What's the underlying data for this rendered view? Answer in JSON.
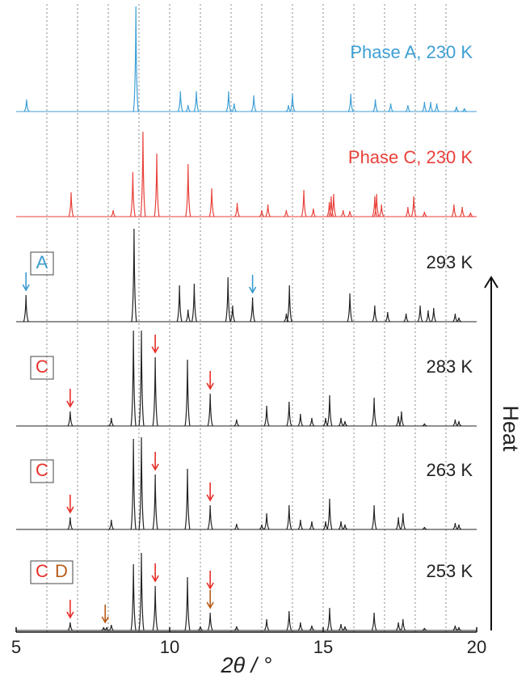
{
  "chart_data": {
    "type": "stacked-pattern",
    "xlabel": "2θ / °",
    "xlim": [
      5,
      20
    ],
    "xticks": [
      5,
      10,
      15,
      20
    ],
    "minor_xticks": [
      6,
      7,
      8,
      9,
      11,
      12,
      13,
      14,
      16,
      17,
      18,
      19
    ],
    "grid": true,
    "annotation": "Heat",
    "series": [
      {
        "name": "Phase A, 230 K",
        "color": "#3d9fd5",
        "x": [
          5.34,
          8.9,
          10.35,
          10.6,
          10.87,
          11.92,
          12.1,
          12.74,
          13.87,
          14.0,
          15.9,
          16.7,
          17.2,
          17.76,
          18.3,
          18.5,
          18.7,
          19.34,
          19.6
        ],
        "values": [
          15,
          130,
          25,
          8,
          25,
          25,
          10,
          20,
          8,
          22,
          22,
          15,
          10,
          8,
          12,
          12,
          10,
          6,
          4
        ]
      },
      {
        "name": "Phase C, 230 K",
        "color": "#e8413a",
        "x": [
          6.79,
          8.16,
          8.8,
          9.13,
          9.58,
          10.6,
          11.37,
          12.2,
          13.0,
          13.2,
          13.8,
          14.37,
          14.68,
          15.2,
          15.26,
          15.34,
          15.65,
          15.87,
          16.68,
          16.74,
          16.9,
          17.76,
          17.95,
          18.3,
          19.26,
          19.53,
          19.8
        ],
        "values": [
          30,
          8,
          55,
          105,
          78,
          65,
          35,
          17,
          8,
          15,
          8,
          33,
          10,
          18,
          25,
          28,
          8,
          7,
          25,
          28,
          15,
          12,
          25,
          6,
          15,
          12,
          5
        ]
      },
      {
        "name": "293 K",
        "color": "#222222",
        "tags": [
          {
            "text": "A",
            "color": "#3a9bd0"
          }
        ],
        "arrows": [
          {
            "x": 5.32,
            "color": "#3a9bd0"
          },
          {
            "x": 12.7,
            "color": "#3a9bd0"
          }
        ],
        "x": [
          5.32,
          8.84,
          10.32,
          10.6,
          10.8,
          11.9,
          12.05,
          12.7,
          13.8,
          13.9,
          15.87,
          16.68,
          17.1,
          17.7,
          18.16,
          18.42,
          18.6,
          19.3,
          19.42
        ],
        "values": [
          33,
          115,
          45,
          15,
          47,
          55,
          20,
          30,
          10,
          45,
          35,
          20,
          12,
          10,
          20,
          14,
          17,
          10,
          5
        ]
      },
      {
        "name": "283 K",
        "color": "#222222",
        "tags": [
          {
            "text": "C",
            "color": "#e8302a"
          }
        ],
        "arrows": [
          {
            "x": 6.76,
            "color": "#e8302a"
          },
          {
            "x": 9.53,
            "color": "#e8302a"
          },
          {
            "x": 11.32,
            "color": "#e8302a"
          }
        ],
        "x": [
          6.76,
          8.1,
          8.82,
          9.08,
          9.53,
          10.58,
          11.32,
          12.18,
          13.16,
          13.89,
          14.26,
          14.63,
          15.08,
          15.21,
          15.58,
          15.71,
          16.66,
          17.45,
          17.55,
          18.3,
          19.3,
          19.42
        ],
        "values": [
          18,
          10,
          118,
          118,
          85,
          82,
          40,
          8,
          25,
          30,
          15,
          10,
          10,
          38,
          10,
          6,
          35,
          12,
          18,
          3,
          8,
          6
        ]
      },
      {
        "name": "263 K",
        "color": "#222222",
        "tags": [
          {
            "text": "C",
            "color": "#e8302a"
          }
        ],
        "arrows": [
          {
            "x": 6.76,
            "color": "#e8302a"
          },
          {
            "x": 9.53,
            "color": "#e8302a"
          },
          {
            "x": 11.32,
            "color": "#e8302a"
          }
        ],
        "x": [
          6.76,
          8.1,
          8.82,
          9.08,
          9.53,
          10.58,
          11.32,
          12.18,
          13.0,
          13.16,
          13.89,
          14.26,
          14.63,
          15.08,
          15.21,
          15.58,
          15.71,
          16.66,
          17.45,
          17.6,
          18.3,
          19.3,
          19.42
        ],
        "values": [
          15,
          12,
          112,
          114,
          68,
          75,
          30,
          7,
          6,
          20,
          30,
          12,
          10,
          10,
          38,
          10,
          6,
          30,
          15,
          20,
          3,
          8,
          6
        ]
      },
      {
        "name": "253 K",
        "color": "#222222",
        "tags": [
          {
            "text": "C",
            "color": "#e8302a"
          },
          {
            "text": "D",
            "color": "#b85c1a"
          }
        ],
        "arrows": [
          {
            "x": 6.76,
            "color": "#e8302a"
          },
          {
            "x": 7.9,
            "color": "#b85c1a"
          },
          {
            "x": 9.53,
            "color": "#e8302a"
          },
          {
            "x": 11.32,
            "color": "#b85c1a"
          },
          {
            "x": 11.32,
            "color": "#e8302a"
          }
        ],
        "x": [
          6.76,
          7.85,
          7.95,
          8.1,
          8.82,
          9.08,
          9.53,
          10.58,
          11.0,
          11.32,
          12.18,
          13.16,
          13.89,
          14.26,
          14.63,
          15.21,
          15.58,
          15.71,
          16.66,
          17.45,
          17.6,
          18.3,
          19.3,
          19.42
        ],
        "values": [
          10,
          4,
          4,
          7,
          82,
          96,
          55,
          66,
          5,
          22,
          5,
          14,
          24,
          10,
          6,
          28,
          8,
          5,
          22,
          10,
          14,
          3,
          6,
          4
        ]
      }
    ]
  }
}
